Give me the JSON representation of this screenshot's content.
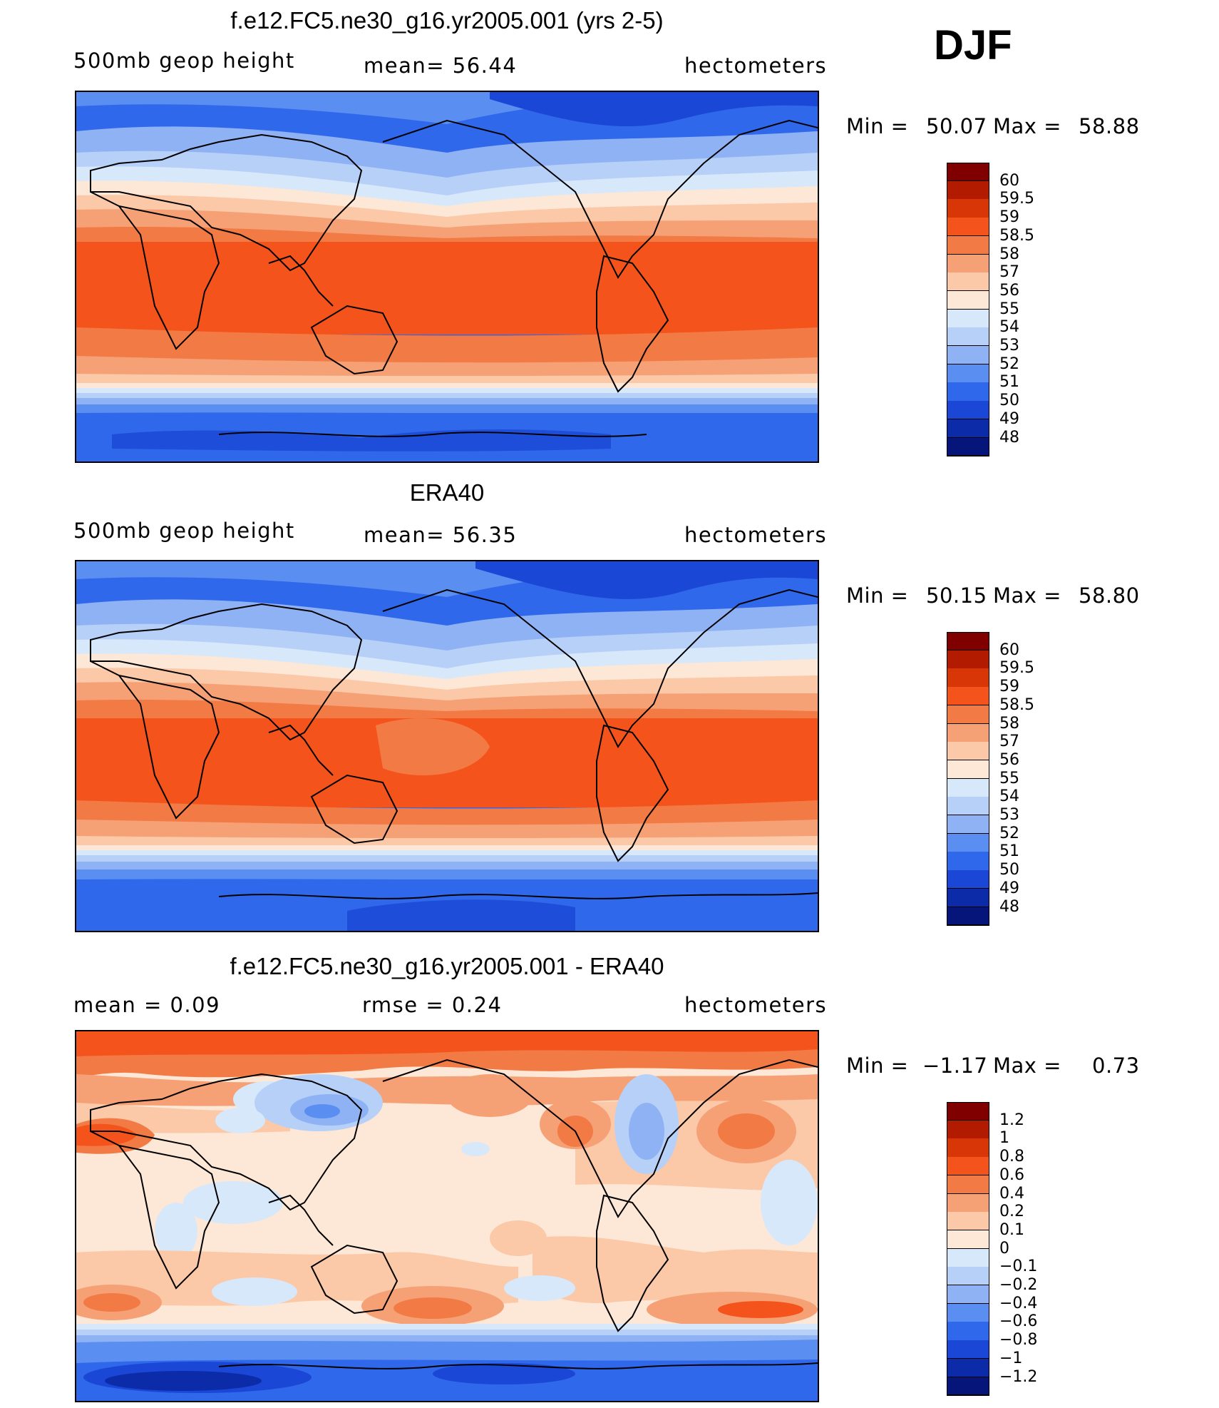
{
  "header": {
    "season": "DJF"
  },
  "panels": [
    {
      "id": "model",
      "title": "f.e12.FC5.ne30_g16.yr2005.001 (yrs 2-5)",
      "left_label": "500mb  geop  height",
      "center_label": "mean=   56.44",
      "right_label": "hectometers",
      "min_label": "Min  =",
      "min_value": "50.07",
      "max_label": "Max  =",
      "max_value": "58.88",
      "colorbar": {
        "labels": [
          "60",
          "59.5",
          "59",
          "58.5",
          "58",
          "57",
          "56",
          "55",
          "54",
          "53",
          "52",
          "51",
          "50",
          "49",
          "48"
        ],
        "colors": [
          "#800000",
          "#b31b00",
          "#d93608",
          "#f5531c",
          "#f27a44",
          "#f6a076",
          "#fbc8a8",
          "#fde7d6",
          "#d8e8fb",
          "#b6d0f8",
          "#8fb2f5",
          "#5a8ef0",
          "#3068eb",
          "#1a47d5",
          "#0c2ba8",
          "#06157a"
        ]
      }
    },
    {
      "id": "obs",
      "title": "ERA40",
      "left_label": "500mb  geop  height",
      "center_label": "mean=   56.35",
      "right_label": "hectometers",
      "min_label": "Min  =",
      "min_value": "50.15",
      "max_label": "Max  =",
      "max_value": "58.80",
      "colorbar": {
        "labels": [
          "60",
          "59.5",
          "59",
          "58.5",
          "58",
          "57",
          "56",
          "55",
          "54",
          "53",
          "52",
          "51",
          "50",
          "49",
          "48"
        ],
        "colors": [
          "#800000",
          "#b31b00",
          "#d93608",
          "#f5531c",
          "#f27a44",
          "#f6a076",
          "#fbc8a8",
          "#fde7d6",
          "#d8e8fb",
          "#b6d0f8",
          "#8fb2f5",
          "#5a8ef0",
          "#3068eb",
          "#1a47d5",
          "#0c2ba8",
          "#06157a"
        ]
      }
    },
    {
      "id": "diff",
      "title": "f.e12.FC5.ne30_g16.yr2005.001 - ERA40",
      "left_label": "mean  =     0.09",
      "center_label": "rmse  =     0.24",
      "right_label": "hectometers",
      "min_label": "Min  =",
      "min_value": "−1.17",
      "max_label": "Max  =",
      "max_value": "0.73",
      "colorbar": {
        "labels": [
          "1.2",
          "1",
          "0.8",
          "0.6",
          "0.4",
          "0.2",
          "0.1",
          "0",
          "−0.1",
          "−0.2",
          "−0.4",
          "−0.6",
          "−0.8",
          "−1",
          "−1.2"
        ],
        "colors": [
          "#800000",
          "#b31b00",
          "#d93608",
          "#f5531c",
          "#f27a44",
          "#f6a076",
          "#fbc8a8",
          "#fde7d6",
          "#d8e8fb",
          "#b6d0f8",
          "#8fb2f5",
          "#5a8ef0",
          "#3068eb",
          "#1a47d5",
          "#0c2ba8",
          "#06157a"
        ]
      }
    }
  ],
  "chart_data": [
    {
      "type": "heatmap",
      "title": "f.e12.FC5.ne30_g16.yr2005.001 (yrs 2-5)",
      "variable": "500mb geop height",
      "units": "hectometers",
      "season": "DJF",
      "mean": 56.44,
      "min": 50.07,
      "max": 58.88,
      "levels": [
        48,
        49,
        50,
        51,
        52,
        53,
        54,
        55,
        56,
        57,
        58,
        58.5,
        59,
        59.5,
        60
      ]
    },
    {
      "type": "heatmap",
      "title": "ERA40",
      "variable": "500mb geop height",
      "units": "hectometers",
      "season": "DJF",
      "mean": 56.35,
      "min": 50.15,
      "max": 58.8,
      "levels": [
        48,
        49,
        50,
        51,
        52,
        53,
        54,
        55,
        56,
        57,
        58,
        58.5,
        59,
        59.5,
        60
      ]
    },
    {
      "type": "heatmap",
      "title": "f.e12.FC5.ne30_g16.yr2005.001 - ERA40",
      "units": "hectometers",
      "season": "DJF",
      "mean": 0.09,
      "rmse": 0.24,
      "min": -1.17,
      "max": 0.73,
      "levels": [
        -1.2,
        -1,
        -0.8,
        -0.6,
        -0.4,
        -0.2,
        -0.1,
        0,
        0.1,
        0.2,
        0.4,
        0.6,
        0.8,
        1,
        1.2
      ]
    }
  ]
}
